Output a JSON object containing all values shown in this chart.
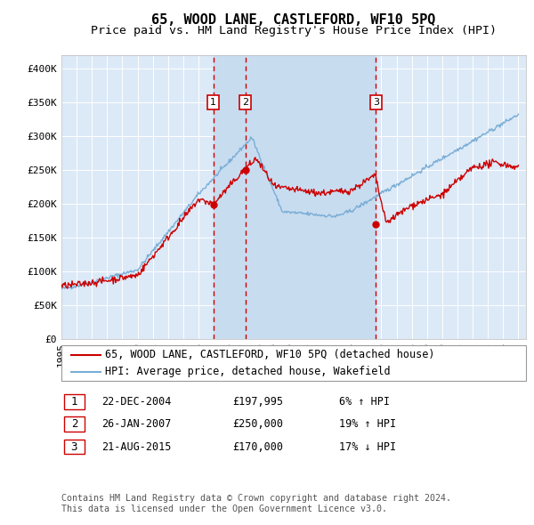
{
  "title": "65, WOOD LANE, CASTLEFORD, WF10 5PQ",
  "subtitle": "Price paid vs. HM Land Registry's House Price Index (HPI)",
  "ylim": [
    0,
    420000
  ],
  "yticks": [
    0,
    50000,
    100000,
    150000,
    200000,
    250000,
    300000,
    350000,
    400000
  ],
  "ytick_labels": [
    "£0",
    "£50K",
    "£100K",
    "£150K",
    "£200K",
    "£250K",
    "£300K",
    "£350K",
    "£400K"
  ],
  "background_color": "#ffffff",
  "plot_bg_color": "#dce9f7",
  "grid_color": "#ffffff",
  "line1_color": "#cc0000",
  "line2_color": "#7aaed6",
  "shade_color": "#c8dcf0",
  "vline_color": "#cc0000",
  "transaction1": {
    "date_num": 2004.97,
    "price": 197995,
    "label": "1"
  },
  "transaction2": {
    "date_num": 2007.07,
    "price": 250000,
    "label": "2"
  },
  "transaction3": {
    "date_num": 2015.64,
    "price": 170000,
    "label": "3"
  },
  "box_color": "#ffffff",
  "box_edge_color": "#cc0000",
  "legend1": "65, WOOD LANE, CASTLEFORD, WF10 5PQ (detached house)",
  "legend2": "HPI: Average price, detached house, Wakefield",
  "table_rows": [
    [
      "1",
      "22-DEC-2004",
      "£197,995",
      "6% ↑ HPI"
    ],
    [
      "2",
      "26-JAN-2007",
      "£250,000",
      "19% ↑ HPI"
    ],
    [
      "3",
      "21-AUG-2015",
      "£170,000",
      "17% ↓ HPI"
    ]
  ],
  "footnote": "Contains HM Land Registry data © Crown copyright and database right 2024.\nThis data is licensed under the Open Government Licence v3.0.",
  "title_fontsize": 11,
  "subtitle_fontsize": 9.5,
  "tick_fontsize": 8,
  "legend_fontsize": 8.5,
  "table_fontsize": 8.5
}
